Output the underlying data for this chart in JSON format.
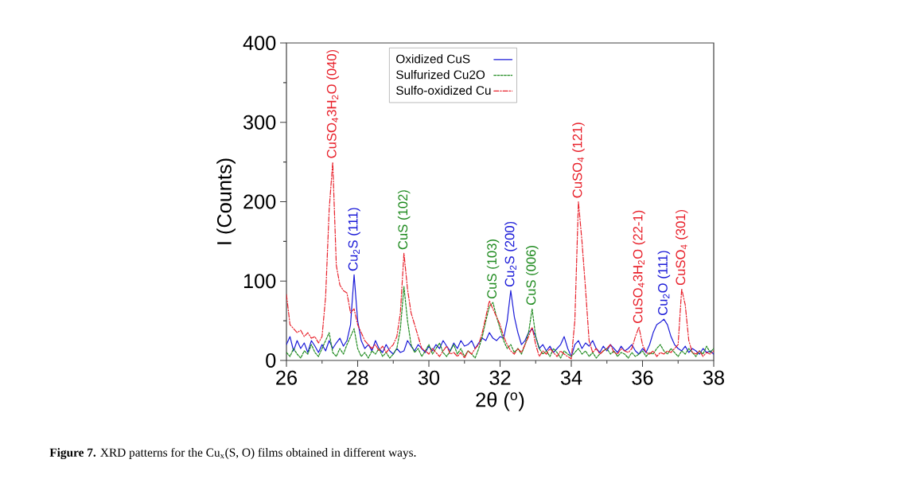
{
  "chart_data": {
    "type": "line",
    "xlabel": "2θ ($^{o}$)",
    "ylabel": "I (Counts)",
    "x": [
      26.0,
      26.1,
      26.2,
      26.3,
      26.4,
      26.5,
      26.6,
      26.7,
      26.8,
      26.9,
      27.0,
      27.1,
      27.2,
      27.3,
      27.4,
      27.5,
      27.6,
      27.7,
      27.8,
      27.9,
      28.0,
      28.1,
      28.2,
      28.3,
      28.4,
      28.5,
      28.6,
      28.7,
      28.8,
      28.9,
      29.0,
      29.1,
      29.2,
      29.3,
      29.4,
      29.5,
      29.6,
      29.7,
      29.8,
      29.9,
      30.0,
      30.1,
      30.2,
      30.3,
      30.4,
      30.5,
      30.6,
      30.7,
      30.8,
      30.9,
      31.0,
      31.1,
      31.2,
      31.3,
      31.4,
      31.5,
      31.6,
      31.7,
      31.8,
      31.9,
      32.0,
      32.1,
      32.2,
      32.3,
      32.4,
      32.5,
      32.6,
      32.7,
      32.8,
      32.9,
      33.0,
      33.1,
      33.2,
      33.3,
      33.4,
      33.5,
      33.6,
      33.7,
      33.8,
      33.9,
      34.0,
      34.1,
      34.2,
      34.3,
      34.4,
      34.5,
      34.6,
      34.7,
      34.8,
      34.9,
      35.0,
      35.1,
      35.2,
      35.3,
      35.4,
      35.5,
      35.6,
      35.7,
      35.8,
      35.9,
      36.0,
      36.1,
      36.2,
      36.3,
      36.4,
      36.5,
      36.6,
      36.7,
      36.8,
      36.9,
      37.0,
      37.1,
      37.2,
      37.3,
      37.4,
      37.5,
      37.6,
      37.7,
      37.8,
      37.9,
      38.0
    ],
    "series": [
      {
        "name": "Oxidized CuS",
        "color": "#1a1ad8",
        "line_style": "solid",
        "values": [
          20,
          30,
          12,
          25,
          15,
          22,
          10,
          25,
          18,
          10,
          20,
          12,
          25,
          15,
          22,
          28,
          18,
          25,
          45,
          108,
          50,
          25,
          15,
          20,
          12,
          25,
          15,
          10,
          20,
          12,
          8,
          15,
          10,
          12,
          25,
          18,
          12,
          20,
          15,
          10,
          18,
          12,
          20,
          15,
          25,
          18,
          12,
          22,
          15,
          25,
          18,
          20,
          25,
          15,
          22,
          28,
          25,
          35,
          28,
          25,
          30,
          28,
          50,
          88,
          55,
          35,
          20,
          25,
          35,
          40,
          30,
          15,
          20,
          12,
          18,
          10,
          15,
          20,
          30,
          15,
          5,
          20,
          25,
          15,
          22,
          18,
          25,
          15,
          10,
          18,
          12,
          20,
          15,
          10,
          18,
          12,
          15,
          20,
          12,
          8,
          15,
          10,
          20,
          35,
          45,
          48,
          52,
          45,
          30,
          20,
          15,
          12,
          18,
          10,
          15,
          12,
          8,
          15,
          10,
          12,
          8
        ]
      },
      {
        "name": "Sulfurized Cu2O",
        "color": "#1e8a1e",
        "line_style": "dashed",
        "values": [
          10,
          5,
          15,
          8,
          3,
          12,
          8,
          20,
          10,
          5,
          15,
          25,
          35,
          10,
          5,
          15,
          8,
          20,
          30,
          40,
          15,
          5,
          10,
          3,
          12,
          8,
          15,
          5,
          10,
          3,
          8,
          15,
          40,
          93,
          50,
          20,
          10,
          15,
          5,
          12,
          20,
          8,
          15,
          22,
          10,
          5,
          12,
          20,
          8,
          15,
          5,
          12,
          8,
          3,
          15,
          30,
          50,
          68,
          73,
          55,
          40,
          25,
          15,
          20,
          10,
          15,
          8,
          20,
          35,
          65,
          30,
          15,
          8,
          12,
          5,
          15,
          10,
          3,
          12,
          8,
          5,
          10,
          15,
          8,
          12,
          5,
          10,
          3,
          8,
          12,
          15,
          8,
          12,
          5,
          10,
          8,
          3,
          10,
          5,
          8,
          12,
          5,
          10,
          8,
          15,
          20,
          12,
          8,
          15,
          10,
          5,
          12,
          8,
          15,
          10,
          5,
          12,
          8,
          18,
          10,
          15
        ]
      },
      {
        "name": "Sulfo-oxidized Cu",
        "color": "#e8202a",
        "line_style": "dashdot",
        "values": [
          83,
          45,
          40,
          35,
          38,
          30,
          35,
          28,
          30,
          22,
          30,
          80,
          190,
          250,
          120,
          95,
          88,
          85,
          60,
          65,
          45,
          35,
          25,
          20,
          15,
          20,
          12,
          18,
          10,
          15,
          20,
          30,
          60,
          135,
          90,
          60,
          45,
          30,
          15,
          12,
          8,
          15,
          10,
          5,
          12,
          18,
          8,
          10,
          5,
          10,
          3,
          12,
          8,
          15,
          20,
          35,
          55,
          75,
          65,
          55,
          45,
          30,
          20,
          12,
          8,
          15,
          10,
          20,
          30,
          42,
          20,
          5,
          12,
          8,
          15,
          10,
          5,
          12,
          8,
          5,
          2,
          50,
          200,
          150,
          90,
          25,
          10,
          15,
          8,
          12,
          15,
          20,
          10,
          8,
          15,
          12,
          10,
          15,
          30,
          42,
          20,
          10,
          8,
          12,
          5,
          10,
          8,
          12,
          10,
          15,
          20,
          90,
          70,
          25,
          10,
          8,
          12,
          5,
          10,
          8,
          12
        ]
      }
    ],
    "xlim": [
      26,
      38
    ],
    "ylim": [
      0,
      400
    ],
    "xticks": [
      26,
      28,
      30,
      32,
      34,
      36,
      38
    ],
    "yticks": [
      0,
      100,
      200,
      300,
      400
    ],
    "legend": "top",
    "annotations": [
      {
        "text": "CuSO$_{4}$3H$_{2}$O (040)",
        "x": 27.3,
        "y": 250
      },
      {
        "text": "Cu$_{2}$S (111)",
        "x": 27.9,
        "y": 108
      },
      {
        "text": "CuS (102)",
        "x": 29.3,
        "y": 93
      },
      {
        "text": "CuS (103)",
        "x": 31.8,
        "y": 73
      },
      {
        "text": "Cu$_{2}$S (200)",
        "x": 32.3,
        "y": 88
      },
      {
        "text": "CuS (006)",
        "x": 32.9,
        "y": 65
      },
      {
        "text": "CuSO$_{4}$ (121)",
        "x": 34.2,
        "y": 200
      },
      {
        "text": "CuSO$_{4}$3H$_{2}$O (22-1)",
        "x": 35.9,
        "y": 42
      },
      {
        "text": "Cu$_{2}$O (111)",
        "x": 36.6,
        "y": 52
      },
      {
        "text": "CuSO$_{4}$ (301)",
        "x": 37.1,
        "y": 90
      },
      "**Figure 7.** XRD patterns for the Cu$_{x}$(S, O) films obtained in different ways."
    ]
  }
}
